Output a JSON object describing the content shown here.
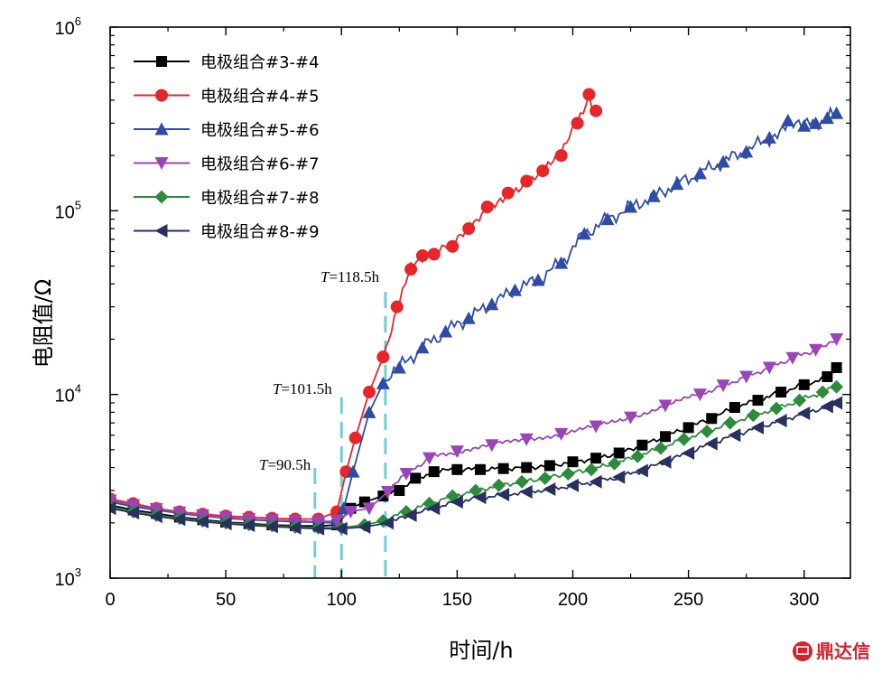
{
  "chart_data": {
    "type": "line",
    "title": "",
    "xlabel": "时间/h",
    "ylabel": "电阻值/Ω",
    "yscale": "log",
    "xlim": [
      0,
      320
    ],
    "ylim": [
      1000,
      1000000
    ],
    "x_ticks": [
      {
        "value": 0,
        "label": "0"
      },
      {
        "value": 50,
        "label": "50"
      },
      {
        "value": 100,
        "label": "100"
      },
      {
        "value": 150,
        "label": "150"
      },
      {
        "value": 200,
        "label": "200"
      },
      {
        "value": 250,
        "label": "250"
      },
      {
        "value": 300,
        "label": "300"
      }
    ],
    "y_ticks": [
      {
        "value": 1000,
        "base": "10",
        "exp": "3"
      },
      {
        "value": 10000,
        "base": "10",
        "exp": "4"
      },
      {
        "value": 100000,
        "base": "10",
        "exp": "5"
      },
      {
        "value": 1000000,
        "base": "10",
        "exp": "6"
      }
    ],
    "legend_position": "top-left",
    "series": [
      {
        "name": "电极组合#3-#4",
        "color": "#000000",
        "marker": "square",
        "x": [
          0,
          10,
          20,
          30,
          40,
          50,
          60,
          70,
          80,
          90,
          98,
          104,
          110,
          118,
          125,
          132,
          140,
          150,
          160,
          170,
          180,
          190,
          200,
          210,
          220,
          230,
          240,
          250,
          260,
          270,
          280,
          290,
          300,
          310,
          314
        ],
        "y": [
          2500,
          2350,
          2250,
          2150,
          2080,
          2020,
          1980,
          1950,
          1930,
          1920,
          1950,
          2400,
          2600,
          2800,
          3000,
          3500,
          3800,
          3900,
          3900,
          3950,
          4000,
          4100,
          4300,
          4500,
          4800,
          5300,
          5900,
          6600,
          7400,
          8500,
          9300,
          10300,
          11300,
          12500,
          14000
        ]
      },
      {
        "name": "电极组合#4-#5",
        "color": "#e8252a",
        "marker": "circle",
        "x": [
          0,
          10,
          20,
          30,
          40,
          50,
          60,
          70,
          80,
          90,
          98,
          102,
          106,
          112,
          118,
          124,
          130,
          135,
          140,
          148,
          155,
          163,
          172,
          180,
          187,
          195,
          202,
          207,
          210
        ],
        "y": [
          2700,
          2550,
          2400,
          2300,
          2230,
          2180,
          2150,
          2120,
          2100,
          2100,
          2300,
          3800,
          5800,
          10300,
          16000,
          30000,
          48000,
          57000,
          58000,
          64000,
          80000,
          105000,
          125000,
          145000,
          165000,
          200000,
          300000,
          430000,
          350000
        ]
      },
      {
        "name": "电极组合#5-#6",
        "color": "#2e4ba6",
        "marker": "triangle-up",
        "x": [
          0,
          10,
          20,
          30,
          40,
          50,
          60,
          70,
          80,
          90,
          98,
          101,
          105,
          112,
          118,
          125,
          135,
          145,
          155,
          165,
          175,
          185,
          195,
          205,
          215,
          225,
          235,
          245,
          255,
          265,
          275,
          285,
          293,
          300,
          305,
          310,
          314
        ],
        "y": [
          2600,
          2450,
          2350,
          2250,
          2180,
          2120,
          2080,
          2050,
          2030,
          2010,
          2000,
          2400,
          3800,
          8000,
          11500,
          14000,
          18000,
          22000,
          26000,
          31000,
          37000,
          42000,
          52000,
          75000,
          90000,
          105000,
          120000,
          140000,
          160000,
          185000,
          210000,
          250000,
          310000,
          290000,
          300000,
          320000,
          340000
        ]
      },
      {
        "name": "电极组合#6-#7",
        "color": "#9b44b5",
        "marker": "triangle-down",
        "x": [
          0,
          10,
          20,
          30,
          40,
          50,
          60,
          70,
          80,
          90,
          98,
          104,
          112,
          120,
          128,
          138,
          150,
          165,
          180,
          195,
          210,
          225,
          240,
          255,
          265,
          275,
          285,
          295,
          305,
          314
        ],
        "y": [
          2650,
          2500,
          2380,
          2280,
          2200,
          2140,
          2100,
          2070,
          2050,
          2030,
          2050,
          2300,
          2400,
          2950,
          3700,
          4500,
          4900,
          5300,
          5700,
          6100,
          6700,
          7500,
          8700,
          10000,
          11200,
          12500,
          14000,
          15800,
          17500,
          20000
        ]
      },
      {
        "name": "电极组合#7-#8",
        "color": "#2e8b3e",
        "marker": "diamond",
        "x": [
          0,
          10,
          20,
          30,
          40,
          50,
          60,
          70,
          80,
          90,
          100,
          110,
          118,
          128,
          138,
          148,
          158,
          168,
          178,
          188,
          198,
          208,
          218,
          228,
          238,
          248,
          258,
          268,
          278,
          288,
          298,
          308,
          314
        ],
        "y": [
          2450,
          2300,
          2200,
          2120,
          2050,
          2000,
          1960,
          1930,
          1900,
          1880,
          1880,
          1950,
          2050,
          2300,
          2550,
          2800,
          3000,
          3200,
          3350,
          3500,
          3700,
          3900,
          4200,
          4600,
          5100,
          5700,
          6300,
          7000,
          7700,
          8400,
          9300,
          10300,
          11000
        ]
      },
      {
        "name": "电极组合#8-#9",
        "color": "#27305f",
        "marker": "triangle-left",
        "x": [
          0,
          10,
          20,
          30,
          40,
          50,
          60,
          70,
          80,
          90,
          100,
          110,
          120,
          130,
          140,
          150,
          160,
          170,
          180,
          190,
          200,
          210,
          220,
          230,
          240,
          250,
          260,
          270,
          280,
          290,
          300,
          310,
          314
        ],
        "y": [
          2400,
          2270,
          2170,
          2090,
          2030,
          1980,
          1940,
          1910,
          1880,
          1860,
          1860,
          1900,
          2000,
          2200,
          2400,
          2600,
          2750,
          2850,
          2950,
          3050,
          3200,
          3350,
          3550,
          3850,
          4300,
          4800,
          5400,
          6000,
          6600,
          7200,
          7900,
          8600,
          9000
        ]
      }
    ],
    "annotations": [
      {
        "label": "T",
        "text": "=90.5h",
        "x_value": 88.5
      },
      {
        "label": "T",
        "text": "=101.5h",
        "x_value": 100
      },
      {
        "label": "T",
        "text": "=118.5h",
        "x_value": 119
      }
    ],
    "annotation_color": "#6fcfd8"
  },
  "watermark": {
    "text": "鼎达信",
    "color": "#d3232f"
  }
}
